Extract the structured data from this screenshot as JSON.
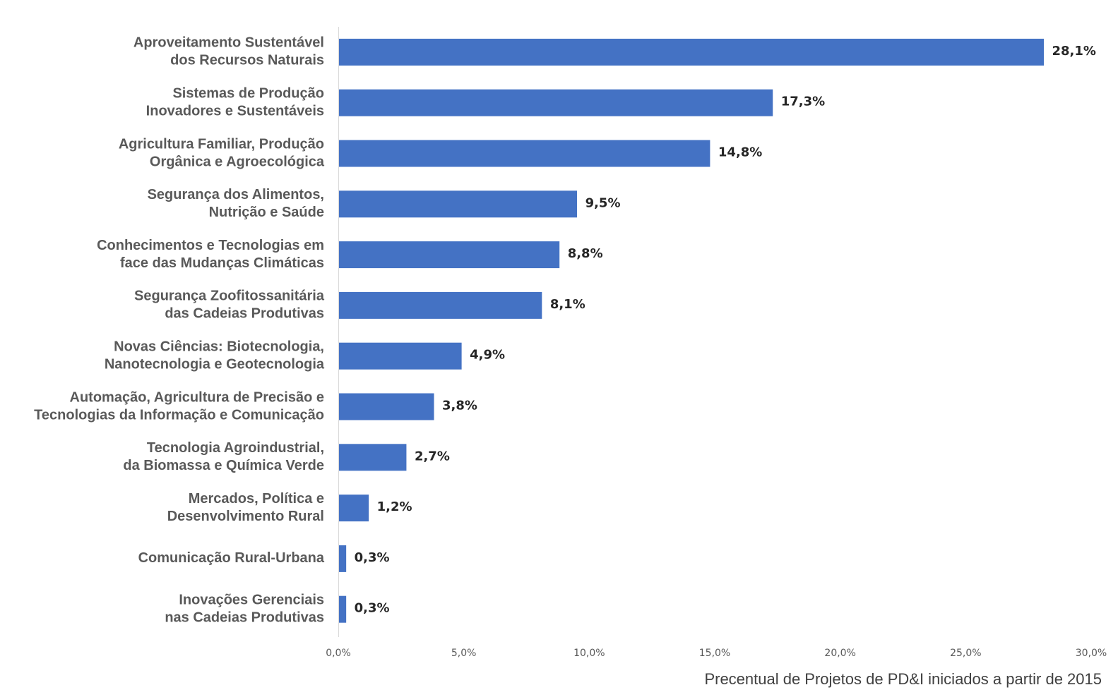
{
  "chart_data": {
    "type": "bar",
    "orientation": "horizontal",
    "categories": [
      [
        "Aproveitamento Sustentável",
        "dos Recursos Naturais"
      ],
      [
        "Sistemas de Produção",
        "Inovadores e Sustentáveis"
      ],
      [
        "Agricultura Familiar, Produção",
        "Orgânica e Agroecológica"
      ],
      [
        "Segurança dos Alimentos,",
        "Nutrição e Saúde"
      ],
      [
        "Conhecimentos e Tecnologias em",
        "face das Mudanças Climáticas"
      ],
      [
        "Segurança Zoofitossanitária",
        "das Cadeias Produtivas"
      ],
      [
        "Novas Ciências: Biotecnologia,",
        "Nanotecnologia e Geotecnologia"
      ],
      [
        "Automação, Agricultura de Precisão e",
        "Tecnologias da Informação e Comunicação"
      ],
      [
        "Tecnologia Agroindustrial,",
        "da Biomassa e Química Verde"
      ],
      [
        "Mercados, Política e",
        "Desenvolvimento Rural"
      ],
      [
        "Comunicação Rural-Urbana"
      ],
      [
        "Inovações Gerenciais",
        "nas Cadeias Produtivas"
      ]
    ],
    "values": [
      28.1,
      17.3,
      14.8,
      9.5,
      8.8,
      8.1,
      4.9,
      3.8,
      2.7,
      1.2,
      0.3,
      0.3
    ],
    "value_labels": [
      "28,1%",
      "17,3%",
      "14,8%",
      "9,5%",
      "8,8%",
      "8,1%",
      "4,9%",
      "3,8%",
      "2,7%",
      "1,2%",
      "0,3%",
      "0,3%"
    ],
    "xlim": [
      0,
      30
    ],
    "xticks": [
      0,
      5,
      10,
      15,
      20,
      25,
      30
    ],
    "xtick_labels": [
      "0,0%",
      "5,0%",
      "10,0%",
      "15,0%",
      "20,0%",
      "25,0%",
      "30,0%"
    ],
    "xlabel": "Precentual de Projetos de PD&I iniciados a partir de 2015",
    "ylabel": "",
    "title": "",
    "grid": false,
    "legend": "none",
    "bar_color": "#4472C4"
  }
}
